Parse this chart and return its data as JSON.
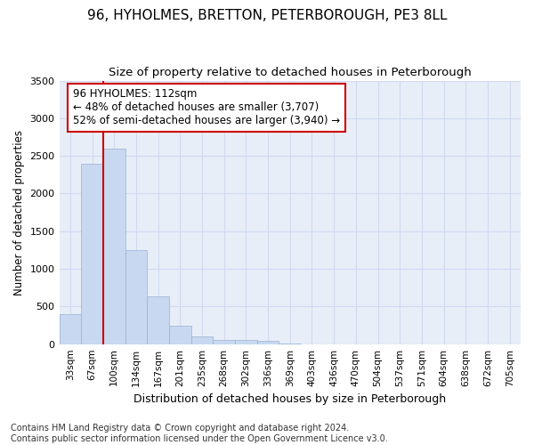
{
  "title1": "96, HYHOLMES, BRETTON, PETERBOROUGH, PE3 8LL",
  "title2": "Size of property relative to detached houses in Peterborough",
  "xlabel": "Distribution of detached houses by size in Peterborough",
  "ylabel": "Number of detached properties",
  "categories": [
    "33sqm",
    "67sqm",
    "100sqm",
    "134sqm",
    "167sqm",
    "201sqm",
    "235sqm",
    "268sqm",
    "302sqm",
    "336sqm",
    "369sqm",
    "403sqm",
    "436sqm",
    "470sqm",
    "504sqm",
    "537sqm",
    "571sqm",
    "604sqm",
    "638sqm",
    "672sqm",
    "705sqm"
  ],
  "values": [
    400,
    2400,
    2600,
    1250,
    640,
    250,
    100,
    60,
    55,
    40,
    5,
    0,
    0,
    0,
    0,
    0,
    0,
    0,
    0,
    0,
    0
  ],
  "bar_color": "#c8d8f0",
  "bar_edge_color": "#9ab0d0",
  "grid_color": "#d0daf0",
  "background_color": "#e8eef8",
  "vline_color": "#cc0000",
  "annotation_text": "96 HYHOLMES: 112sqm\n← 48% of detached houses are smaller (3,707)\n52% of semi-detached houses are larger (3,940) →",
  "annotation_box_color": "#ffffff",
  "annotation_box_edge": "#cc0000",
  "footer": "Contains HM Land Registry data © Crown copyright and database right 2024.\nContains public sector information licensed under the Open Government Licence v3.0.",
  "ylim": [
    0,
    3500
  ],
  "yticks": [
    0,
    500,
    1000,
    1500,
    2000,
    2500,
    3000,
    3500
  ]
}
